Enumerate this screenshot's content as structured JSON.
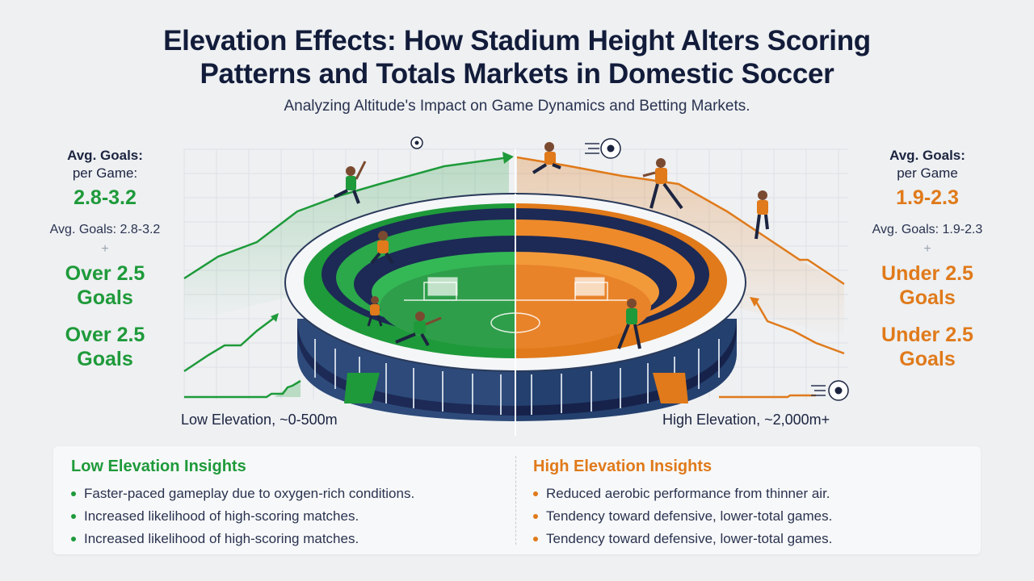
{
  "title_line1": "Elevation Effects: How Stadium Height Alters Scoring",
  "title_line2": "Patterns and Totals Markets in Domestic Soccer",
  "subtitle": "Analyzing Altitude's Impact on Game Dynamics and Betting Markets.",
  "colors": {
    "low": "#1e9a3a",
    "high": "#e07a1a",
    "navy": "#1c2a55"
  },
  "low": {
    "avg_label_1": "Avg. Goals:",
    "avg_label_2": "per Game:",
    "avg_value": "2.8-3.2",
    "avg_plain": "Avg. Goals: 2.8-3.2",
    "plus": "+",
    "bet_1_line1": "Over 2.5",
    "bet_1_line2": "Goals",
    "bet_2_line1": "Over 2.5",
    "bet_2_line2": "Goals",
    "elevation": "Low Elevation, ~0-500m",
    "insights_title": "Low Elevation Insights",
    "insights": [
      "Faster-paced gameplay due to oxygen-rich conditions.",
      "Increased likelihood of high-scoring matches.",
      "Increased likelihood of high-scoring matches."
    ]
  },
  "high": {
    "avg_label_1": "Avg. Goals:",
    "avg_label_2": "per Game",
    "avg_value": "1.9-2.3",
    "avg_plain": "Avg. Goals: 1.9-2.3",
    "plus": "+",
    "bet_1_line1": "Under 2.5",
    "bet_1_line2": "Goals",
    "bet_2_line1": "Under 2.5",
    "bet_2_line2": "Goals",
    "elevation": "High Elevation, ~2,000m+",
    "insights_title": "High Elevation Insights",
    "insights": [
      "Reduced aerobic performance from thinner air.",
      "Tendency toward defensive, lower-total games.",
      "Tendency toward defensive, lower-total games."
    ]
  },
  "icons": [
    "soccer-ball-icon",
    "player-figure-icon",
    "stadium-illustration",
    "trend-up-arrow-icon",
    "trend-down-arrow-icon"
  ]
}
